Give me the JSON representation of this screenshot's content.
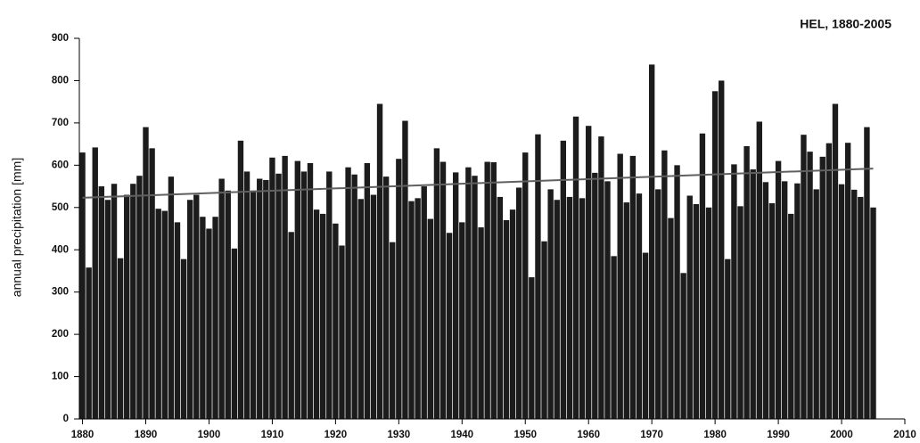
{
  "chart_data": {
    "type": "bar",
    "title": "HEL, 1880-2005",
    "ylabel": "annual precipitation [mm]",
    "x": [
      1880,
      1881,
      1882,
      1883,
      1884,
      1885,
      1886,
      1887,
      1888,
      1889,
      1890,
      1891,
      1892,
      1893,
      1894,
      1895,
      1896,
      1897,
      1898,
      1899,
      1900,
      1901,
      1902,
      1903,
      1904,
      1905,
      1906,
      1907,
      1908,
      1909,
      1910,
      1911,
      1912,
      1913,
      1914,
      1915,
      1916,
      1917,
      1918,
      1919,
      1920,
      1921,
      1922,
      1923,
      1924,
      1925,
      1926,
      1927,
      1928,
      1929,
      1930,
      1931,
      1932,
      1933,
      1934,
      1935,
      1936,
      1937,
      1938,
      1939,
      1940,
      1941,
      1942,
      1943,
      1944,
      1945,
      1946,
      1947,
      1948,
      1949,
      1950,
      1951,
      1952,
      1953,
      1954,
      1955,
      1956,
      1957,
      1958,
      1959,
      1960,
      1961,
      1962,
      1963,
      1964,
      1965,
      1966,
      1967,
      1968,
      1969,
      1970,
      1971,
      1972,
      1973,
      1974,
      1975,
      1976,
      1977,
      1978,
      1979,
      1980,
      1981,
      1982,
      1983,
      1984,
      1985,
      1986,
      1987,
      1988,
      1989,
      1990,
      1991,
      1992,
      1993,
      1994,
      1995,
      1996,
      1997,
      1998,
      1999,
      2000,
      2001,
      2002,
      2003,
      2004,
      2005
    ],
    "values": [
      630,
      358,
      642,
      550,
      518,
      556,
      380,
      530,
      556,
      575,
      690,
      640,
      497,
      492,
      573,
      465,
      378,
      518,
      530,
      478,
      450,
      478,
      568,
      540,
      403,
      658,
      585,
      540,
      568,
      565,
      618,
      580,
      622,
      442,
      610,
      585,
      605,
      495,
      485,
      585,
      462,
      410,
      595,
      578,
      520,
      605,
      530,
      745,
      573,
      418,
      615,
      705,
      515,
      522,
      550,
      473,
      640,
      608,
      440,
      583,
      465,
      595,
      575,
      453,
      608,
      607,
      525,
      470,
      495,
      547,
      630,
      335,
      673,
      420,
      543,
      518,
      658,
      525,
      715,
      522,
      693,
      582,
      668,
      562,
      385,
      627,
      512,
      622,
      533,
      393,
      838,
      543,
      635,
      475,
      600,
      345,
      528,
      508,
      675,
      500,
      775,
      800,
      378,
      602,
      503,
      645,
      590,
      703,
      560,
      510,
      610,
      562,
      485,
      557,
      672,
      632,
      543,
      620,
      652,
      745,
      555,
      653,
      542,
      525,
      690,
      500
    ],
    "color": "#1c1c1c",
    "trend": {
      "x": [
        1880,
        2005
      ],
      "values": [
        523,
        592
      ],
      "color": "#606060"
    },
    "xlim": [
      1879.5,
      2010
    ],
    "xticks": [
      1880,
      1890,
      1900,
      1910,
      1920,
      1930,
      1940,
      1950,
      1960,
      1970,
      1980,
      1990,
      2000,
      2010
    ],
    "ylim": [
      0,
      900
    ],
    "yticks": [
      0,
      100,
      200,
      300,
      400,
      500,
      600,
      700,
      800,
      900
    ]
  }
}
